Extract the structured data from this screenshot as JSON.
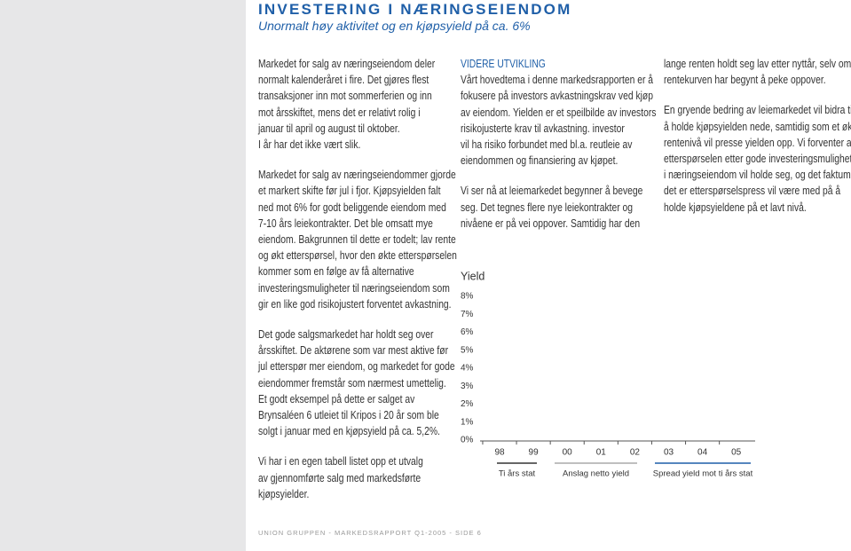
{
  "header": {
    "title": "INVESTERING I NÆRINGSEIENDOM",
    "subtitle": "Unormalt høy aktivitet og en kjøpsyield på ca. 6%"
  },
  "columns": [
    {
      "paragraphs": [
        [
          "Markedet for salg av næringseiendom deler",
          "normalt kalenderåret i fire. Det gjøres flest",
          "transaksjoner inn mot sommerferien og inn",
          "mot årsskiftet, mens det er relativt rolig i",
          "januar til april og august til oktober.",
          "I år har det ikke vært slik."
        ],
        [
          "Markedet for salg av næringseiendommer gjorde",
          "et markert skifte før jul i fjor. Kjøpsyielden falt",
          "ned mot 6% for godt beliggende eiendom med",
          "7-10 års leiekontrakter. Det ble omsatt mye",
          "eiendom. Bakgrunnen til dette er todelt; lav rente",
          "og økt etterspørsel, hvor den økte etterspørselen",
          "kommer som en følge av få alternative",
          "investeringsmuligheter til næringseiendom som",
          "gir en like god risikojustert forventet avkastning."
        ],
        [
          "Det gode salgsmarkedet har holdt seg over",
          "årsskiftet. De aktørene som var mest aktive før",
          "jul etterspør mer eiendom, og markedet for gode",
          "eiendommer fremstår som nærmest umettelig.",
          "Et godt eksempel på dette er salget av",
          "Brynsaléen 6 utleiet til Kripos i 20 år som ble",
          "solgt i januar med en kjøpsyield på ca. 5,2%."
        ],
        [
          "Vi har i en egen tabell listet opp et utvalg",
          "av gjennomførte salg med markedsførte",
          "kjøpsyielder."
        ]
      ]
    },
    {
      "heading": "VIDERE UTVIKLING",
      "paragraphs": [
        [
          "Vårt hovedtema i denne markedsrapporten er å",
          "fokusere på investors avkastningskrav ved kjøp",
          "av eiendom. Yielden er et speilbilde av investors",
          "risikojusterte krav til avkastning. investor",
          "vil ha risiko forbundet med bl.a. reutleie av",
          "eiendommen og finansiering av kjøpet."
        ],
        [
          "Vi ser nå at leiemarkedet begynner å bevege",
          "seg. Det tegnes flere nye leiekontrakter og",
          "nivåene er på vei oppover. Samtidig har den"
        ]
      ]
    },
    {
      "paragraphs": [
        [
          "lange renten holdt seg lav etter nyttår, selv om",
          "rentekurven har begynt å peke oppover."
        ],
        [
          "En gryende bedring av leiemarkedet vil bidra til",
          "å holde kjøpsyielden nede, samtidig som et økt",
          "rentenivå vil presse yielden opp. Vi forventer at",
          "etterspørselen etter gode investeringsmuligheter",
          "i næringseiendom vil holde seg, og det faktum at",
          "det er etterspørselspress vil være med på å",
          "holde kjøpsyieldene på et lavt nivå."
        ]
      ]
    }
  ],
  "chart_data": {
    "type": "line",
    "y_label": "Yield",
    "categories": [
      "98",
      "99",
      "00",
      "01",
      "02",
      "03",
      "04",
      "05"
    ],
    "ylim": [
      0,
      8
    ],
    "yticks": [
      {
        "value": 0,
        "label": "0%"
      },
      {
        "value": 1,
        "label": "1%"
      },
      {
        "value": 2,
        "label": "2%"
      },
      {
        "value": 3,
        "label": "3%"
      },
      {
        "value": 4,
        "label": "4%"
      },
      {
        "value": 5,
        "label": "5%"
      },
      {
        "value": 6,
        "label": "6%"
      },
      {
        "value": 7,
        "label": "7%"
      },
      {
        "value": 8,
        "label": "8%"
      }
    ],
    "series": [
      {
        "name": "Ti års stat",
        "color": "#333333"
      },
      {
        "name": "Anslag netto yield",
        "color": "#aaaaaa"
      },
      {
        "name": "Spread yield mot ti års stat",
        "color": "#1f5fa8"
      }
    ]
  },
  "footer": "UNION GRUPPEN - MARKEDSRAPPORT Q1-2005 - SIDE 6"
}
